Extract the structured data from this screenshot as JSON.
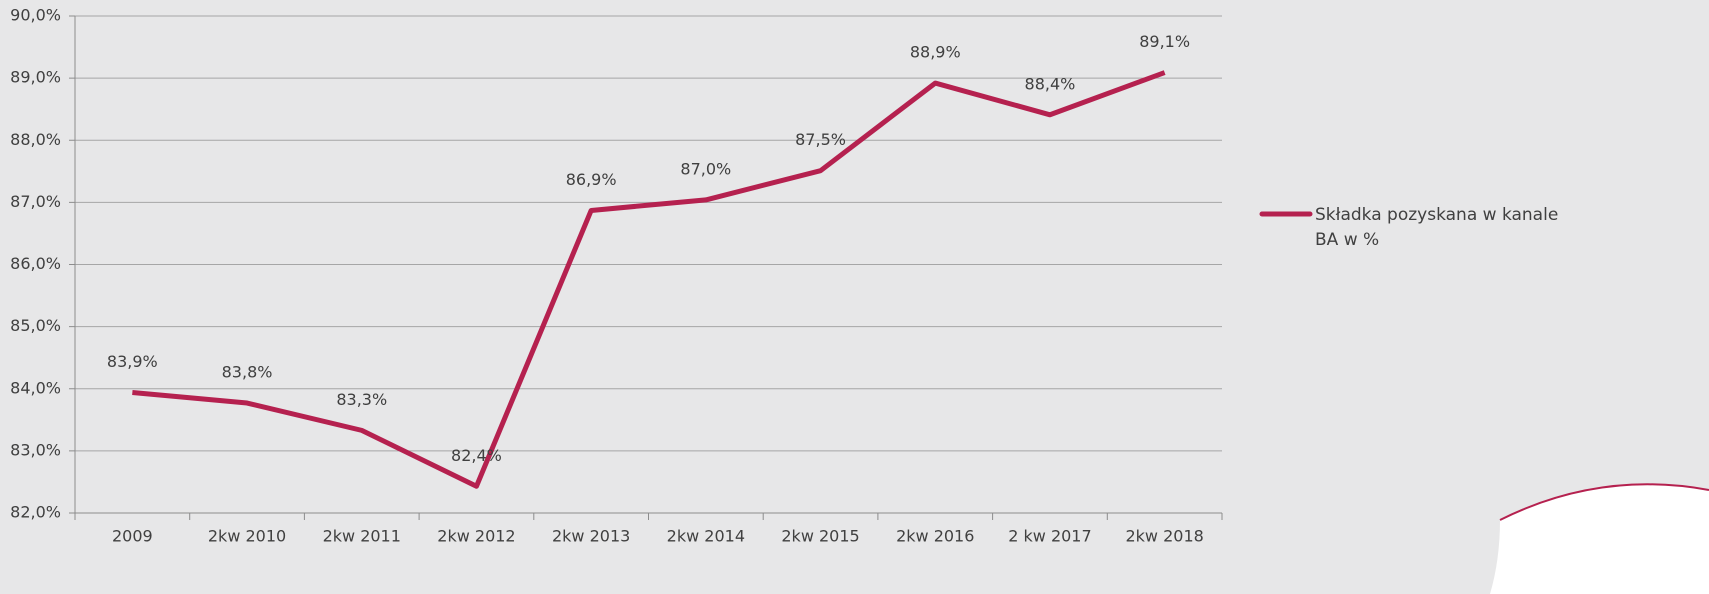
{
  "chart_data": {
    "type": "line",
    "categories": [
      "2009",
      "2kw 2010",
      "2kw 2011",
      "2kw 2012",
      "2kw 2013",
      "2kw 2014",
      "2kw 2015",
      "2kw 2016",
      "2 kw 2017",
      "2kw 2018"
    ],
    "series": [
      {
        "name": "Składka pozyskana w kanale BA w %",
        "color": "#b5214f",
        "values": [
          83.94,
          83.77,
          83.33,
          82.43,
          86.87,
          87.04,
          87.51,
          88.92,
          88.41,
          89.09
        ],
        "value_labels": [
          "83,9%",
          "83,8%",
          "83,3%",
          "82,4%",
          "86,9%",
          "87,0%",
          "87,5%",
          "88,9%",
          "88,4%",
          "89,1%"
        ]
      }
    ],
    "ylim": [
      82,
      90
    ],
    "yticks": [
      {
        "value": 82,
        "label": "82,0%"
      },
      {
        "value": 83,
        "label": "83,0%"
      },
      {
        "value": 84,
        "label": "84,0%"
      },
      {
        "value": 85,
        "label": "85,0%"
      },
      {
        "value": 86,
        "label": "86,0%"
      },
      {
        "value": 87,
        "label": "87,0%"
      },
      {
        "value": 88,
        "label": "88,0%"
      },
      {
        "value": 89,
        "label": "89,0%"
      },
      {
        "value": 90,
        "label": "90,0%"
      }
    ],
    "grid": true,
    "legend": "right"
  }
}
